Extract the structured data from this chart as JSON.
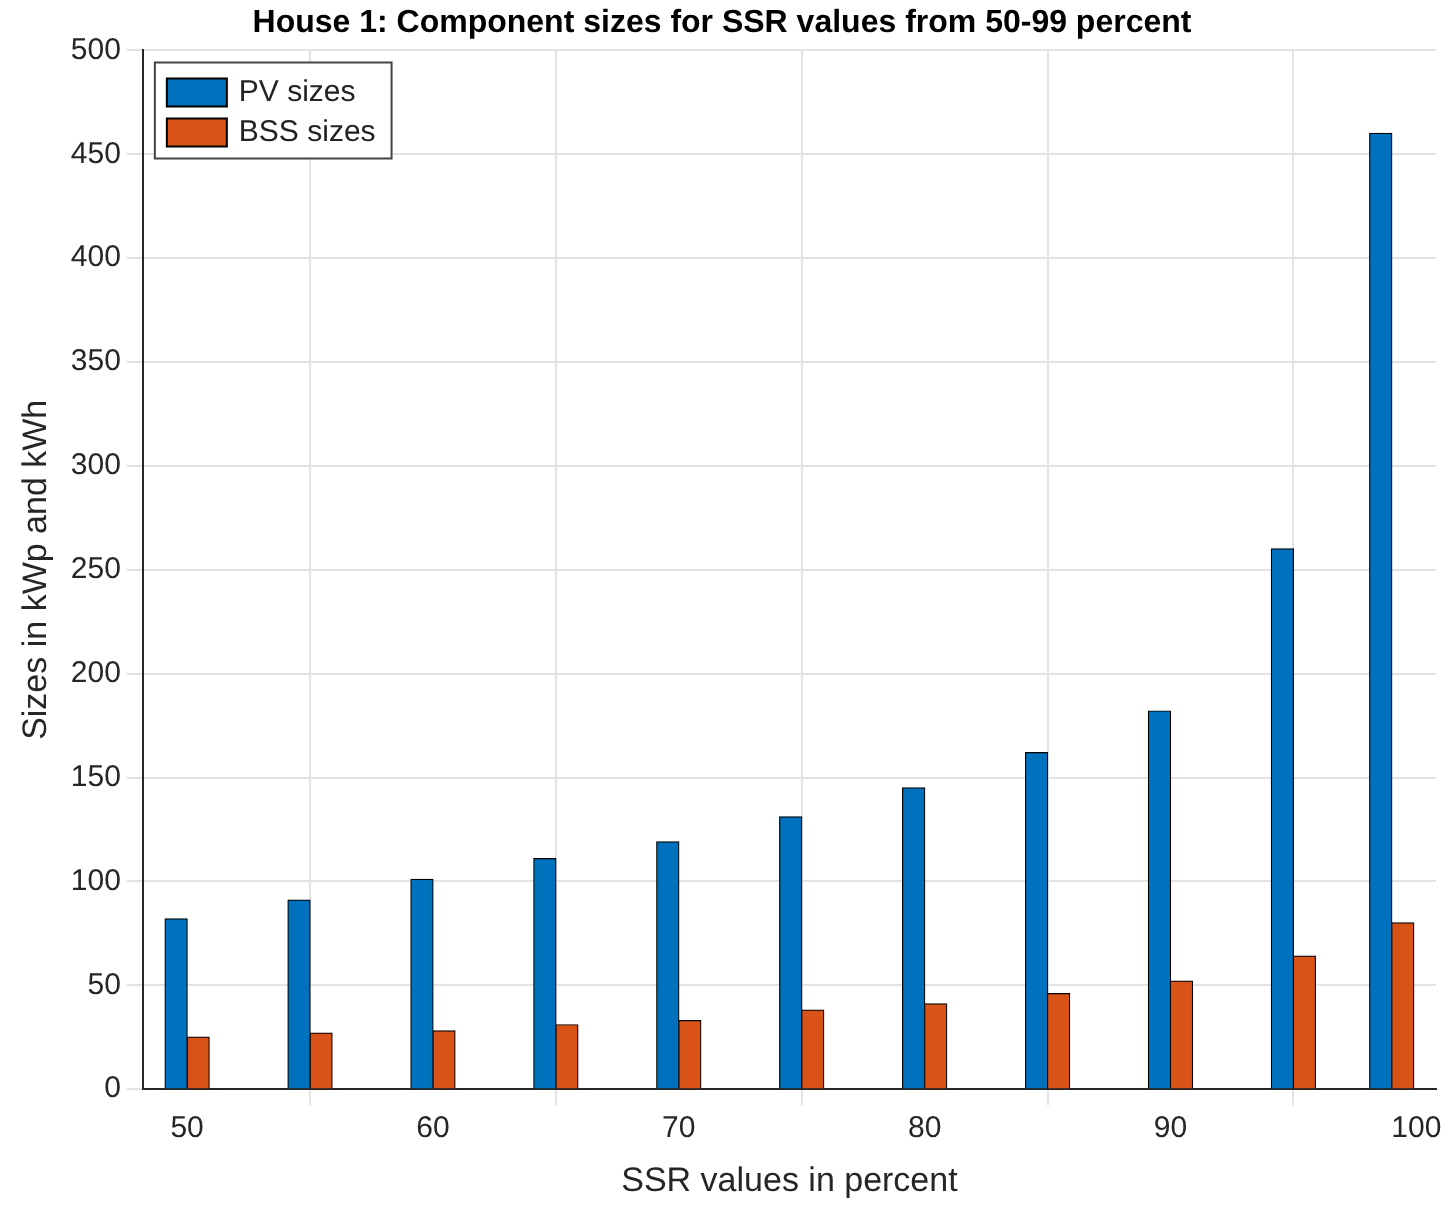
{
  "chart_data": {
    "type": "bar",
    "title": "House 1: Component sizes for SSR values from 50-99 percent",
    "xlabel": "SSR values in percent",
    "ylabel": "Sizes in kWp and kWh",
    "x": [
      50,
      55,
      60,
      65,
      70,
      75,
      80,
      85,
      90,
      95,
      99
    ],
    "series": [
      {
        "name": "PV sizes",
        "color": "#0072bd",
        "values": [
          82,
          91,
          101,
          111,
          119,
          131,
          145,
          162,
          182,
          260,
          460
        ]
      },
      {
        "name": "BSS sizes",
        "color": "#d95319",
        "values": [
          25,
          27,
          28,
          31,
          33,
          38,
          41,
          46,
          52,
          64,
          80
        ]
      }
    ],
    "xlim": [
      48.2,
      100.8
    ],
    "xticks": [
      50,
      60,
      70,
      80,
      90,
      100
    ],
    "ylim": [
      0,
      500
    ],
    "yticks": [
      0,
      50,
      100,
      150,
      200,
      250,
      300,
      350,
      400,
      450,
      500
    ],
    "grid": true,
    "legend": "top left"
  }
}
